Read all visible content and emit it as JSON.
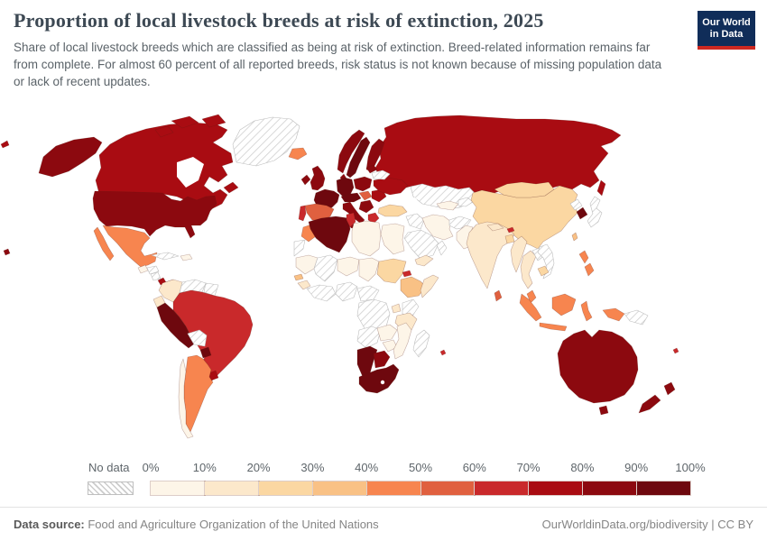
{
  "header": {
    "title": "Proportion of local livestock breeds at risk of extinction, 2025",
    "subtitle": "Share of local livestock breeds which are classified as being at risk of extinction. Breed-related information remains far from complete. For almost 60 percent of all reported breeds, risk status is not known because of missing population data or lack of recent updates.",
    "logo": {
      "line1": "Our World",
      "line2": "in Data",
      "bg_color": "#102D59",
      "stripe_color": "#CE2820"
    }
  },
  "footer": {
    "source_label": "Data source:",
    "source_text": " Food and Agriculture Organization of the United Nations",
    "right_text": "OurWorldinData.org/biodiversity | CC BY"
  },
  "chart_data": {
    "type": "choropleth-map",
    "title": "Proportion of local livestock breeds at risk of extinction, 2025",
    "year": 2025,
    "unit": "% of local livestock breeds at risk of extinction",
    "no_data_label": "No data",
    "legend_ticks": [
      "0%",
      "10%",
      "20%",
      "30%",
      "40%",
      "50%",
      "60%",
      "70%",
      "80%",
      "90%",
      "100%"
    ],
    "legend_ranges": [
      "0-10%",
      "10-20%",
      "20-30%",
      "30-40%",
      "40-50%",
      "50-60%",
      "60-70%",
      "70-80%",
      "80-90%",
      "90-100%"
    ],
    "legend_colors": [
      "#FDF5E8",
      "#FCE8CB",
      "#FBD7A2",
      "#F9C185",
      "#F7854F",
      "#E0603F",
      "#C9292B",
      "#A90C12",
      "#8C090F",
      "#6E080E"
    ],
    "border_color_data": "rgba(90,30,20,0.35)",
    "border_color_nodata": "#bdbdbd",
    "entities": {
      "United States": "80-90%",
      "Canada": "70-80%",
      "Greenland": "No data",
      "Iceland": "40-50%",
      "Mexico": "40-50%",
      "Guatemala": "0-10%",
      "Honduras": "No data",
      "Nicaragua": "No data",
      "Costa Rica": "70-80%",
      "Panama": "90-100%",
      "Cuba": "No data",
      "Dominican Republic": "0-10%",
      "Colombia": "10-20%",
      "Venezuela": "No data",
      "Guyana": "No data",
      "Ecuador": "10-20%",
      "Peru": "90-100%",
      "Brazil": "60-70%",
      "Bolivia": "No data",
      "Paraguay": "90-100%",
      "Uruguay": "70-80%",
      "Argentina": "40-50%",
      "Chile": "0-10%",
      "Ireland": "80-90%",
      "United Kingdom": "80-90%",
      "Norway": "80-90%",
      "Sweden": "90-100%",
      "Finland": "80-90%",
      "Denmark": "80-90%",
      "France": "90-100%",
      "Spain": "50-60%",
      "Portugal": "60-70%",
      "Germany": "90-100%",
      "Poland": "80-90%",
      "Austria": "90-100%",
      "Hungary": "50-60%",
      "Romania": "70-80%",
      "Serbia": "80-90%",
      "Italy": "80-90%",
      "Greece": "60-70%",
      "Ukraine": "70-80%",
      "Belarus": "No data",
      "Lithuania": "80-90%",
      "Russia": "70-80%",
      "Kazakhstan": "No data",
      "Uzbekistan": "0-10%",
      "Kyrgyzstan": "No data",
      "Turkey": "20-30%",
      "Iraq": "No data",
      "Iran": "0-10%",
      "Saudi Arabia": "No data",
      "Yemen": "10-20%",
      "Oman": "No data",
      "Afghanistan": "No data",
      "Pakistan": "0-10%",
      "India": "10-20%",
      "Nepal": "10-20%",
      "Bhutan": "60-70%",
      "Bangladesh": "20-30%",
      "Sri Lanka": "50-60%",
      "Myanmar": "10-20%",
      "Thailand": "10-20%",
      "Laos": "No data",
      "Vietnam": "No data",
      "Cambodia": "20-30%",
      "China": "20-30%",
      "Mongolia": "20-30%",
      "North Korea": "No data",
      "South Korea": "90-100%",
      "Japan": "No data",
      "Taiwan": "30-40%",
      "Philippines": "40-50%",
      "Malaysia": "40-50%",
      "Indonesia": "40-50%",
      "Papua New Guinea": "No data",
      "Australia": "80-90%",
      "New Zealand": "80-90%",
      "Fiji": "60-70%",
      "Morocco": "40-50%",
      "Western Sahara": "No data",
      "Algeria": "90-100%",
      "Tunisia": "60-70%",
      "Libya": "0-10%",
      "Egypt": "0-10%",
      "Mauritania": "0-10%",
      "Mali": "No data",
      "Niger": "0-10%",
      "Chad": "0-10%",
      "Sudan": "20-30%",
      "Eritrea": "60-70%",
      "Ethiopia": "30-40%",
      "Somalia": "10-20%",
      "Senegal": "30-40%",
      "Guinea": "10-20%",
      "Ivory Coast": "No data",
      "Nigeria": "No data",
      "Cameroon": "No data",
      "DR Congo": "No data",
      "Uganda": "10-20%",
      "Kenya": "No data",
      "Tanzania": "10-20%",
      "Angola": "No data",
      "Zambia": "0-10%",
      "Zimbabwe": "0-10%",
      "Mozambique": "0-10%",
      "Madagascar": "No data",
      "Namibia": "90-100%",
      "Botswana": "80-90%",
      "South Africa": "90-100%",
      "Mauritius": "60-70%"
    }
  }
}
